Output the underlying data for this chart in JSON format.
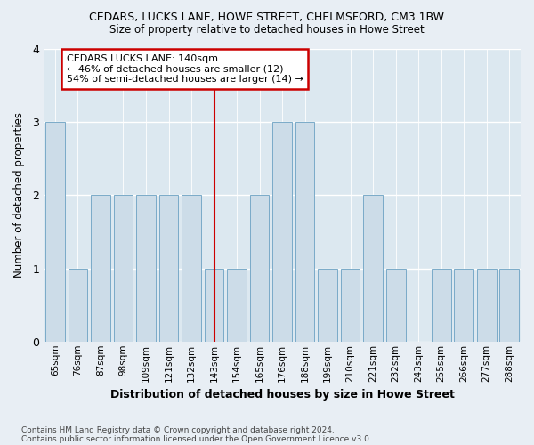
{
  "title": "CEDARS, LUCKS LANE, HOWE STREET, CHELMSFORD, CM3 1BW",
  "subtitle": "Size of property relative to detached houses in Howe Street",
  "xlabel": "Distribution of detached houses by size in Howe Street",
  "ylabel": "Number of detached properties",
  "categories": [
    "65sqm",
    "76sqm",
    "87sqm",
    "98sqm",
    "109sqm",
    "121sqm",
    "132sqm",
    "143sqm",
    "154sqm",
    "165sqm",
    "176sqm",
    "188sqm",
    "199sqm",
    "210sqm",
    "221sqm",
    "232sqm",
    "243sqm",
    "255sqm",
    "266sqm",
    "277sqm",
    "288sqm"
  ],
  "values": [
    3,
    1,
    2,
    2,
    2,
    2,
    2,
    1,
    1,
    2,
    3,
    3,
    1,
    1,
    2,
    1,
    0,
    1,
    1,
    1,
    1
  ],
  "bar_color": "#ccdce8",
  "bar_edge_color": "#7aaac8",
  "bar_linewidth": 0.7,
  "reference_line_index": 7,
  "reference_line_color": "#cc0000",
  "annotation_text": "CEDARS LUCKS LANE: 140sqm\n← 46% of detached houses are smaller (12)\n54% of semi-detached houses are larger (14) →",
  "annotation_box_color": "#ffffff",
  "annotation_box_edge_color": "#cc0000",
  "ylim": [
    0,
    4
  ],
  "yticks": [
    0,
    1,
    2,
    3,
    4
  ],
  "footnote1": "Contains HM Land Registry data © Crown copyright and database right 2024.",
  "footnote2": "Contains public sector information licensed under the Open Government Licence v3.0.",
  "bg_color": "#e8eef4",
  "plot_bg_color": "#dce8f0",
  "title_fontsize": 9,
  "subtitle_fontsize": 8.5
}
